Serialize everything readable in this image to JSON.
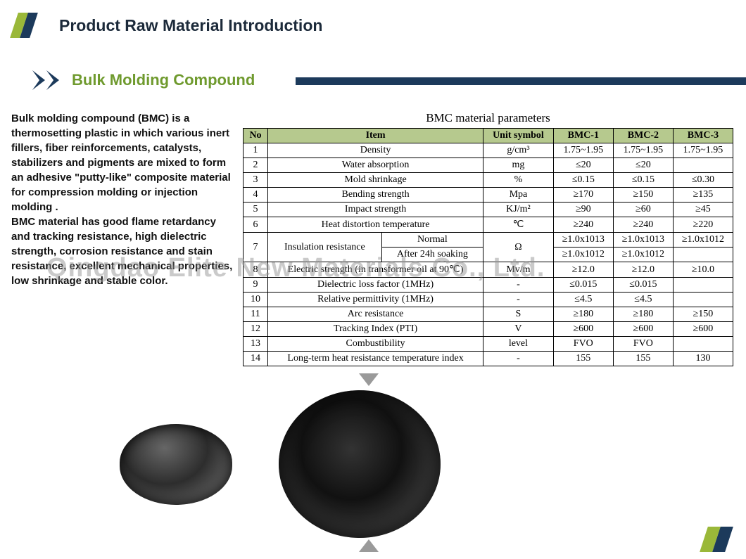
{
  "header": {
    "title": "Product Raw Material Introduction"
  },
  "subheader": {
    "title": "Bulk Molding Compound"
  },
  "desc": {
    "p1": "Bulk molding compound (BMC) is a thermosetting plastic in which various inert fillers, fiber reinforcements, catalysts,  stabilizers and pigments are mixed to  form an adhesive \"putty-like\" composite  material for compression molding or  injection molding .",
    "p2": "BMC material has good flame retardancy and tracking resistance, high dielectric  strength, corrosion resistance and stain  resistance, excellent mechanical  properties, low shrinkage and stable color."
  },
  "watermark": "Qingdao Elite New Materials Co., Ltd.",
  "table": {
    "caption": "BMC material parameters",
    "headers": [
      "No",
      "Item",
      "Unit symbol",
      "BMC-1",
      "BMC-2",
      "BMC-3"
    ],
    "rows": [
      {
        "no": "1",
        "item": "Density",
        "unit": "g/cm³",
        "b1": "1.75~1.95",
        "b2": "1.75~1.95",
        "b3": "1.75~1.95"
      },
      {
        "no": "2",
        "item": "Water absorption",
        "unit": "mg",
        "b1": "≤20",
        "b2": "≤20",
        "b3": ""
      },
      {
        "no": "3",
        "item": "Mold shrinkage",
        "unit": "%",
        "b1": "≤0.15",
        "b2": "≤0.15",
        "b3": "≤0.30"
      },
      {
        "no": "4",
        "item": "Bending strength",
        "unit": "Mpa",
        "b1": "≥170",
        "b2": "≥150",
        "b3": "≥135"
      },
      {
        "no": "5",
        "item": "Impact strength",
        "unit": "KJ/m²",
        "b1": "≥90",
        "b2": "≥60",
        "b3": "≥45"
      },
      {
        "no": "6",
        "item": "Heat distortion temperature",
        "unit": "℃",
        "b1": "≥240",
        "b2": "≥240",
        "b3": "≥220"
      },
      {
        "no": "8",
        "item": "Electric strength (in transformer oil at 90℃)",
        "unit": "Mv/m",
        "b1": "≥12.0",
        "b2": "≥12.0",
        "b3": "≥10.0"
      },
      {
        "no": "9",
        "item": "Dielectric loss factor (1MHz)",
        "unit": "-",
        "b1": "≤0.015",
        "b2": "≤0.015",
        "b3": ""
      },
      {
        "no": "10",
        "item": "Relative permittivity (1MHz)",
        "unit": "-",
        "b1": "≤4.5",
        "b2": "≤4.5",
        "b3": ""
      },
      {
        "no": "11",
        "item": "Arc resistance",
        "unit": "S",
        "b1": "≥180",
        "b2": "≥180",
        "b3": "≥150"
      },
      {
        "no": "12",
        "item": "Tracking Index (PTI)",
        "unit": "V",
        "b1": "≥600",
        "b2": "≥600",
        "b3": "≥600"
      },
      {
        "no": "13",
        "item": "Combustibility",
        "unit": "level",
        "b1": "FVO",
        "b2": "FVO",
        "b3": ""
      },
      {
        "no": "14",
        "item": "Long-term heat resistance temperature index",
        "unit": "-",
        "b1": "155",
        "b2": "155",
        "b3": "130"
      }
    ],
    "row7": {
      "no": "7",
      "item": "Insulation resistance",
      "sub1": "Normal",
      "sub2": "After 24h soaking",
      "unit": "Ω",
      "r1b1": "≥1.0x1013",
      "r1b2": "≥1.0x1013",
      "r1b3": "≥1.0x1012",
      "r2b1": "≥1.0x1012",
      "r2b2": "≥1.0x1012",
      "r2b3": ""
    }
  }
}
